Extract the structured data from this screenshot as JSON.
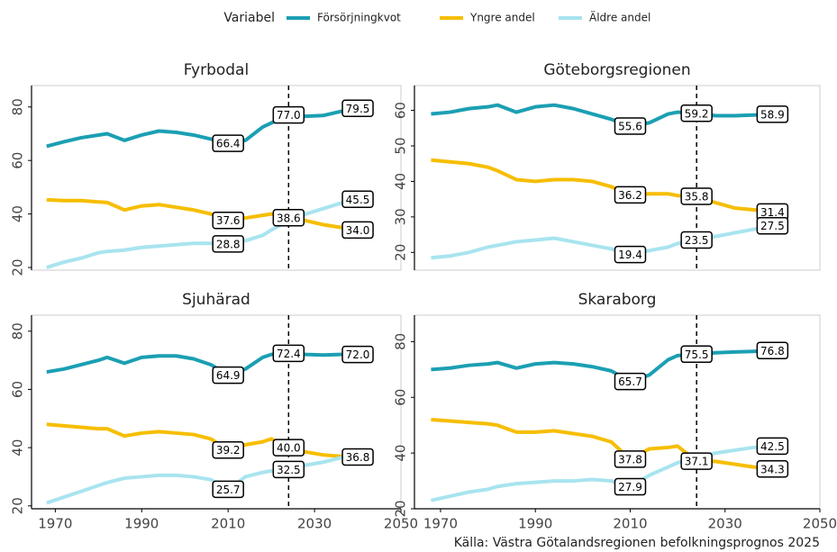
{
  "legend_title": "Variabel",
  "caption": "Källa: Västra Götalandsregionen befolkningsprognos 2025",
  "chart_data": [
    {
      "type": "line",
      "title": "Fyrbodal",
      "x": [
        1968,
        1972,
        1976,
        1980,
        1982,
        1986,
        1990,
        1994,
        1998,
        2002,
        2006,
        2010,
        2014,
        2018,
        2020,
        2024,
        2028,
        2032,
        2036,
        2040
      ],
      "xlim": [
        1964.5,
        2050
      ],
      "ylim": [
        19,
        88
      ],
      "yticks": [
        20,
        40,
        60,
        80
      ],
      "vline": 2024,
      "series": [
        {
          "name": "Försörjningkvot",
          "color": "#1b9fb3",
          "values": [
            65.3,
            67,
            68.5,
            69.5,
            70,
            67.5,
            69.5,
            71,
            70.5,
            69.5,
            68,
            66.4,
            67.5,
            72.5,
            74,
            77.0,
            76.5,
            76.8,
            78.3,
            79.5
          ],
          "value_labels": [
            null,
            null,
            null,
            null,
            null,
            null,
            null,
            null,
            null,
            null,
            null,
            "66.4",
            null,
            null,
            null,
            "77.0",
            null,
            null,
            null,
            "79.5"
          ]
        },
        {
          "name": "Yngre andel",
          "color": "#f6be00",
          "values": [
            45.3,
            45,
            45,
            44.5,
            44.3,
            41.5,
            43,
            43.5,
            42.5,
            41.5,
            40,
            37.6,
            38.5,
            39.5,
            40,
            38.6,
            37.5,
            36,
            35,
            34.0
          ],
          "value_labels": [
            null,
            null,
            null,
            null,
            null,
            null,
            null,
            null,
            null,
            null,
            null,
            "37.6",
            null,
            null,
            null,
            "38.6",
            null,
            null,
            null,
            "34.0"
          ]
        },
        {
          "name": "Äldre andel",
          "color": "#a8e4ef",
          "values": [
            20,
            22,
            23.5,
            25.5,
            26,
            26.5,
            27.5,
            28,
            28.5,
            29,
            29,
            28.8,
            30,
            32,
            34,
            37.5,
            40,
            42,
            44,
            45.5
          ],
          "value_labels": [
            null,
            null,
            null,
            null,
            null,
            null,
            null,
            null,
            null,
            null,
            null,
            "28.8",
            null,
            null,
            null,
            null,
            null,
            null,
            null,
            "45.5"
          ]
        }
      ]
    },
    {
      "type": "line",
      "title": "Göteborgsregionen",
      "x": [
        1968,
        1972,
        1976,
        1980,
        1982,
        1986,
        1990,
        1994,
        1998,
        2002,
        2006,
        2010,
        2014,
        2018,
        2020,
        2024,
        2028,
        2032,
        2036,
        2040
      ],
      "xlim": [
        1964.5,
        2050
      ],
      "ylim": [
        15,
        67
      ],
      "yticks": [
        20,
        30,
        40,
        50,
        60
      ],
      "vline": 2024,
      "series": [
        {
          "name": "Försörjningkvot",
          "color": "#1b9fb3",
          "values": [
            59,
            59.5,
            60.5,
            61,
            61.5,
            59.5,
            61,
            61.5,
            60.5,
            59,
            57.5,
            55.6,
            56.5,
            59,
            59.5,
            59.2,
            58.5,
            58.5,
            58.7,
            58.9
          ],
          "value_labels": [
            null,
            null,
            null,
            null,
            null,
            null,
            null,
            null,
            null,
            null,
            null,
            "55.6",
            null,
            null,
            null,
            "59.2",
            null,
            null,
            null,
            "58.9"
          ]
        },
        {
          "name": "Yngre andel",
          "color": "#f6be00",
          "values": [
            46,
            45.5,
            45,
            44,
            43,
            40.5,
            40,
            40.5,
            40.5,
            40,
            38.5,
            36.2,
            36.5,
            36.5,
            36,
            35.8,
            34,
            32.5,
            32,
            31.4
          ],
          "value_labels": [
            null,
            null,
            null,
            null,
            null,
            null,
            null,
            null,
            null,
            null,
            null,
            "36.2",
            null,
            null,
            null,
            "35.8",
            null,
            null,
            null,
            "31.4"
          ]
        },
        {
          "name": "Äldre andel",
          "color": "#a8e4ef",
          "values": [
            18.5,
            19,
            20,
            21.5,
            22,
            23,
            23.5,
            24,
            23,
            22,
            21,
            19.4,
            20.5,
            21.5,
            22.5,
            23.5,
            24.5,
            25.5,
            26.5,
            27.5
          ],
          "value_labels": [
            null,
            null,
            null,
            null,
            null,
            null,
            null,
            null,
            null,
            null,
            null,
            "19.4",
            null,
            null,
            null,
            "23.5",
            null,
            null,
            null,
            "27.5"
          ]
        }
      ]
    },
    {
      "type": "line",
      "title": "Sjuhärad",
      "x": [
        1968,
        1972,
        1976,
        1980,
        1982,
        1986,
        1990,
        1994,
        1998,
        2002,
        2006,
        2010,
        2014,
        2018,
        2020,
        2024,
        2028,
        2032,
        2036,
        2040
      ],
      "xlim": [
        1964.5,
        2050
      ],
      "xticks": [
        1970,
        1990,
        2010,
        2030,
        2050
      ],
      "ylim": [
        19,
        85.5
      ],
      "yticks": [
        20,
        40,
        60,
        80
      ],
      "vline": 2024,
      "series": [
        {
          "name": "Försörjningkvot",
          "color": "#1b9fb3",
          "values": [
            66,
            67,
            68.5,
            70,
            71,
            69,
            71,
            71.5,
            71.5,
            70.5,
            68.5,
            64.9,
            67,
            71,
            72,
            72.4,
            72,
            71.8,
            72,
            72.0
          ],
          "value_labels": [
            null,
            null,
            null,
            null,
            null,
            null,
            null,
            null,
            null,
            null,
            null,
            "64.9",
            null,
            null,
            null,
            "72.4",
            null,
            null,
            null,
            "72.0"
          ]
        },
        {
          "name": "Yngre andel",
          "color": "#f6be00",
          "values": [
            48,
            47.5,
            47,
            46.5,
            46.5,
            44,
            45,
            45.5,
            45,
            44.5,
            43,
            39.2,
            41,
            42,
            43,
            40.0,
            38.5,
            37.5,
            37,
            36.8
          ],
          "value_labels": [
            null,
            null,
            null,
            null,
            null,
            null,
            null,
            null,
            null,
            null,
            null,
            "39.2",
            null,
            null,
            null,
            "40.0",
            null,
            null,
            null,
            "36.8"
          ]
        },
        {
          "name": "Äldre andel",
          "color": "#a8e4ef",
          "values": [
            21,
            23,
            25,
            27,
            28,
            29.5,
            30,
            30.5,
            30.5,
            30,
            29,
            25.7,
            30,
            31.5,
            32,
            32.5,
            34,
            35,
            36.5,
            37.5
          ],
          "value_labels": [
            null,
            null,
            null,
            null,
            null,
            null,
            null,
            null,
            null,
            null,
            null,
            "25.7",
            null,
            null,
            null,
            "32.5",
            null,
            null,
            null,
            null
          ]
        }
      ]
    },
    {
      "type": "line",
      "title": "Skaraborg",
      "x": [
        1968,
        1972,
        1976,
        1980,
        1982,
        1986,
        1990,
        1994,
        1998,
        2002,
        2006,
        2010,
        2014,
        2018,
        2020,
        2024,
        2028,
        2032,
        2036,
        2040
      ],
      "xlim": [
        1964.5,
        2050
      ],
      "xticks": [
        1970,
        1990,
        2010,
        2030,
        2050
      ],
      "ylim": [
        20,
        89.5
      ],
      "yticks": [
        20,
        40,
        60,
        80
      ],
      "vline": 2024,
      "series": [
        {
          "name": "Försörjningkvot",
          "color": "#1b9fb3",
          "values": [
            70,
            70.5,
            71.5,
            72,
            72.5,
            70.5,
            72,
            72.5,
            72,
            71,
            69.5,
            65.7,
            68,
            73.5,
            75,
            75.5,
            76,
            76.3,
            76.5,
            76.8
          ],
          "value_labels": [
            null,
            null,
            null,
            null,
            null,
            null,
            null,
            null,
            null,
            null,
            null,
            "65.7",
            null,
            null,
            null,
            "75.5",
            null,
            null,
            null,
            "76.8"
          ]
        },
        {
          "name": "Yngre andel",
          "color": "#f6be00",
          "values": [
            52,
            51.5,
            51,
            50.5,
            50,
            47.5,
            47.5,
            48,
            47,
            46,
            44,
            37.8,
            41.5,
            42,
            42.5,
            37.1,
            37,
            36,
            35,
            34.3
          ],
          "value_labels": [
            null,
            null,
            null,
            null,
            null,
            null,
            null,
            null,
            null,
            null,
            null,
            "37.8",
            null,
            null,
            null,
            "37.1",
            null,
            null,
            null,
            "34.3"
          ]
        },
        {
          "name": "Äldre andel",
          "color": "#a8e4ef",
          "values": [
            23,
            24.5,
            26,
            27,
            28,
            29,
            29.5,
            30,
            30,
            30.5,
            30,
            27.9,
            32,
            35,
            36.5,
            38.5,
            40,
            41,
            42,
            42.5
          ],
          "value_labels": [
            null,
            null,
            null,
            null,
            null,
            null,
            null,
            null,
            null,
            null,
            null,
            "27.9",
            null,
            null,
            null,
            null,
            null,
            null,
            null,
            "42.5"
          ]
        }
      ]
    }
  ]
}
